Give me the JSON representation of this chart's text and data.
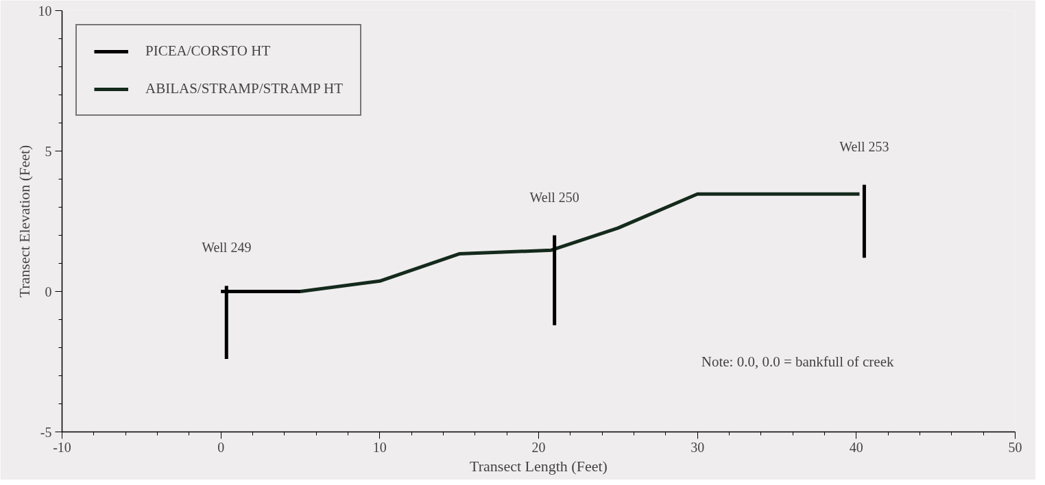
{
  "chart_data": {
    "type": "line",
    "xlabel": "Transect Length (Feet)",
    "ylabel": "Transect Elevation (Feet)",
    "xlim": [
      -10,
      50
    ],
    "xticks": [
      -10,
      0,
      10,
      20,
      30,
      40,
      50
    ],
    "ylim": [
      -5,
      10
    ],
    "yticks": [
      -5,
      0,
      5,
      10
    ],
    "grid": false,
    "legend": "top left",
    "marker": "none",
    "line_style": "solid",
    "series": [
      {
        "name": "PICEA/CORSTO HT",
        "color": "#000000",
        "x": [
          0,
          5
        ],
        "values": [
          0,
          0
        ]
      },
      {
        "name": "ABILAS/STRAMP/STRAMP HT",
        "color": "#142a1c",
        "x": [
          5,
          10,
          15,
          20.8,
          25,
          30,
          40.2
        ],
        "values": [
          0,
          0.37,
          1.34,
          1.47,
          2.26,
          3.47,
          3.47
        ]
      },
      {
        "color": "#000000",
        "x": [
          0.35,
          0.35
        ],
        "values": [
          0.2,
          -2.4
        ]
      },
      {
        "color": "#000000",
        "x": [
          21.0,
          21.0
        ],
        "values": [
          2.0,
          -1.2
        ]
      },
      {
        "color": "#000000",
        "x": [
          40.5,
          40.5
        ],
        "values": [
          3.8,
          1.2
        ]
      }
    ],
    "annotations": [
      {
        "text": "Well 249",
        "x": 0.35,
        "y": 0.2
      },
      {
        "text": "Well 250",
        "x": 21.0,
        "y": 2.0
      },
      {
        "text": "Well 253",
        "x": 40.5,
        "y": 3.8
      },
      "Note: 0.0, 0.0 = bankfull of creek"
    ]
  }
}
